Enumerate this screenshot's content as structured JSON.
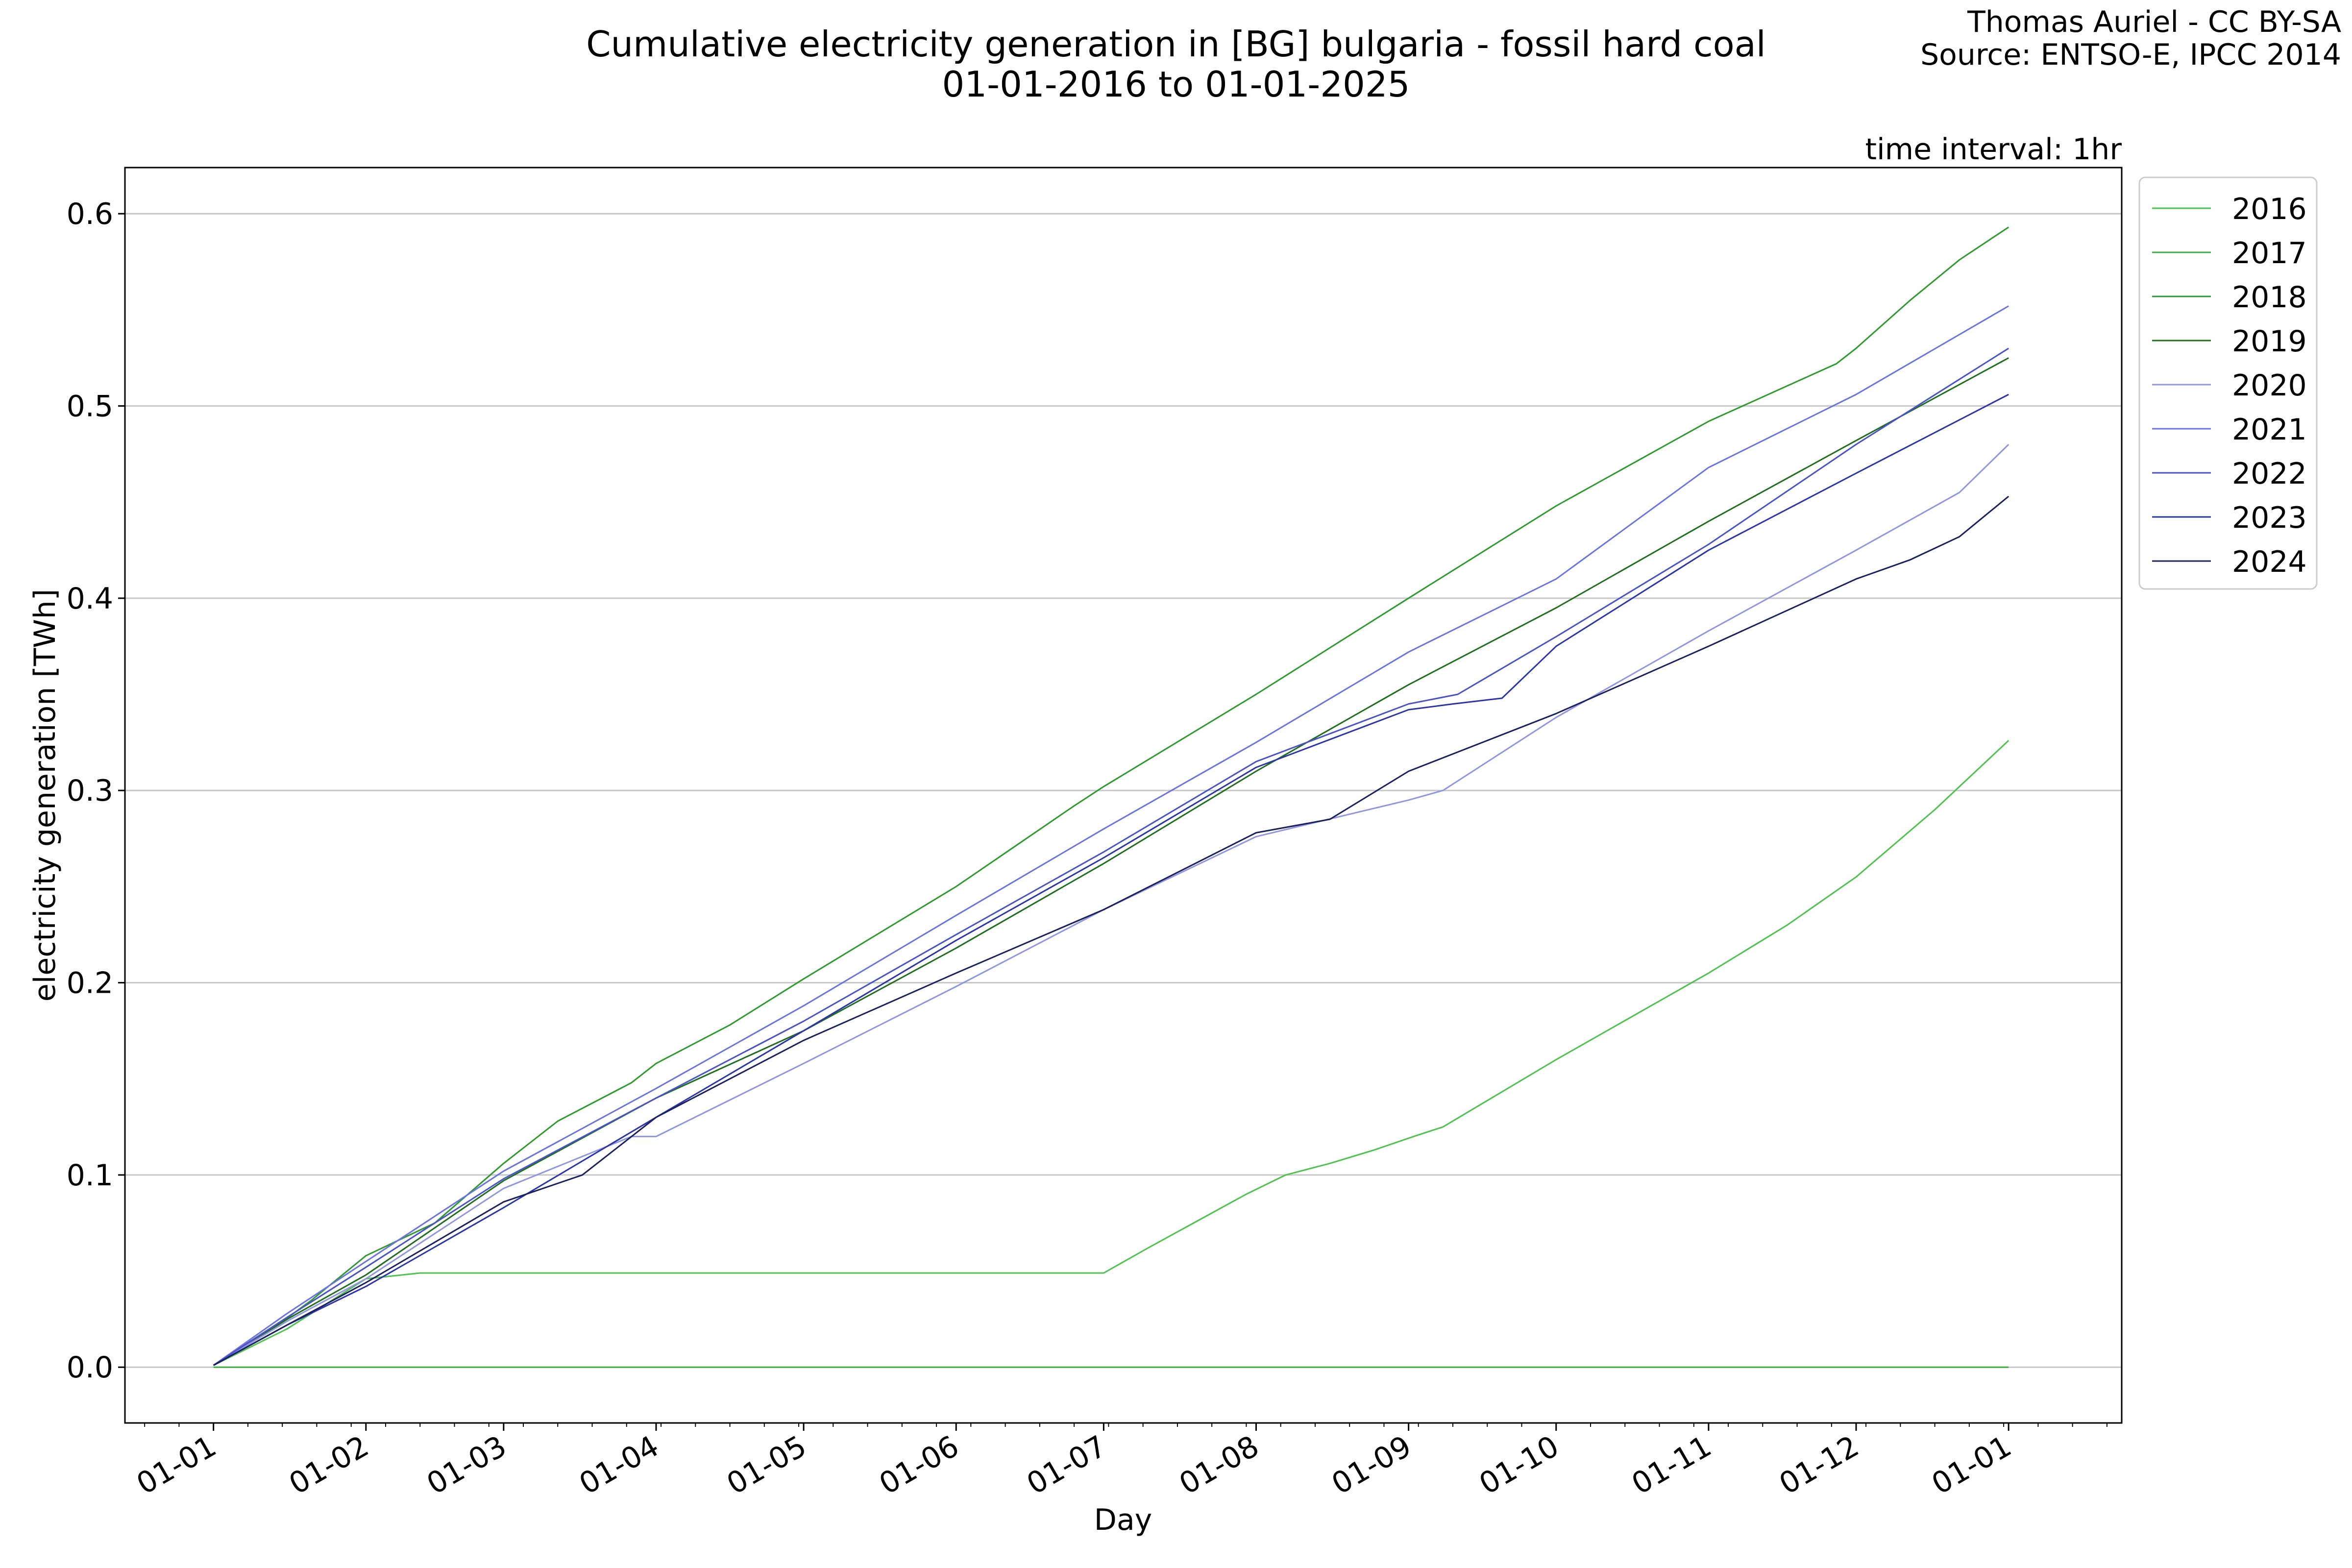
{
  "header": {
    "title_line1": "Cumulative electricity generation in [BG] bulgaria - fossil hard coal",
    "title_line2": "01-01-2016 to 01-01-2025",
    "credit_line1": "Thomas Auriel - CC BY-SA",
    "credit_line2": "Source: ENTSO-E, IPCC 2014",
    "interval_note": "time interval: 1hr"
  },
  "chart_data": {
    "type": "line",
    "title": "Cumulative electricity generation in [BG] bulgaria - fossil hard coal",
    "subtitle": "01-01-2016 to 01-01-2025",
    "xlabel": "Day",
    "ylabel": "electricity generation [TWh]",
    "x_tick_labels": [
      "01-01",
      "01-02",
      "01-03",
      "01-04",
      "01-05",
      "01-06",
      "01-07",
      "01-08",
      "01-09",
      "01-10",
      "01-11",
      "01-12",
      "01-01"
    ],
    "x_tick_days": [
      0,
      31,
      59,
      90,
      120,
      151,
      181,
      212,
      243,
      273,
      304,
      334,
      365
    ],
    "xlim": [
      -18,
      388
    ],
    "ylim": [
      -0.029,
      0.624
    ],
    "y_ticks": [
      0.0,
      0.1,
      0.2,
      0.3,
      0.4,
      0.5,
      0.6
    ],
    "y_tick_labels": [
      "0.0",
      "0.1",
      "0.2",
      "0.3",
      "0.4",
      "0.5",
      "0.6"
    ],
    "grid": "horizontal",
    "legend_position": "outside-right-top",
    "series": [
      {
        "name": "2016",
        "color": "#4ec24e",
        "points": [
          [
            0,
            0.001
          ],
          [
            15,
            0.02
          ],
          [
            31,
            0.046
          ],
          [
            42,
            0.049
          ],
          [
            60,
            0.049
          ],
          [
            120,
            0.049
          ],
          [
            181,
            0.049
          ],
          [
            190,
            0.062
          ],
          [
            200,
            0.076
          ],
          [
            210,
            0.09
          ],
          [
            218,
            0.1
          ],
          [
            227,
            0.106
          ],
          [
            236,
            0.113
          ],
          [
            244,
            0.12
          ],
          [
            250,
            0.125
          ],
          [
            273,
            0.16
          ],
          [
            304,
            0.205
          ],
          [
            320,
            0.23
          ],
          [
            334,
            0.255
          ],
          [
            350,
            0.29
          ],
          [
            365,
            0.326
          ]
        ]
      },
      {
        "name": "2017",
        "color": "#3fb13f",
        "points": [
          [
            0,
            0.0
          ],
          [
            365,
            0.0
          ]
        ]
      },
      {
        "name": "2018",
        "color": "#2e9a2e",
        "points": [
          [
            0,
            0.001
          ],
          [
            12,
            0.02
          ],
          [
            20,
            0.035
          ],
          [
            31,
            0.058
          ],
          [
            45,
            0.075
          ],
          [
            59,
            0.106
          ],
          [
            70,
            0.128
          ],
          [
            85,
            0.148
          ],
          [
            90,
            0.158
          ],
          [
            105,
            0.178
          ],
          [
            120,
            0.202
          ],
          [
            151,
            0.25
          ],
          [
            175,
            0.292
          ],
          [
            181,
            0.302
          ],
          [
            212,
            0.35
          ],
          [
            243,
            0.4
          ],
          [
            273,
            0.448
          ],
          [
            304,
            0.492
          ],
          [
            330,
            0.522
          ],
          [
            334,
            0.53
          ],
          [
            345,
            0.555
          ],
          [
            355,
            0.576
          ],
          [
            365,
            0.593
          ]
        ]
      },
      {
        "name": "2019",
        "color": "#1e6e1e",
        "points": [
          [
            0,
            0.001
          ],
          [
            15,
            0.025
          ],
          [
            31,
            0.048
          ],
          [
            59,
            0.097
          ],
          [
            90,
            0.14
          ],
          [
            120,
            0.175
          ],
          [
            151,
            0.218
          ],
          [
            181,
            0.262
          ],
          [
            212,
            0.31
          ],
          [
            243,
            0.355
          ],
          [
            273,
            0.395
          ],
          [
            304,
            0.44
          ],
          [
            334,
            0.482
          ],
          [
            365,
            0.525
          ]
        ]
      },
      {
        "name": "2020",
        "color": "#8f95de",
        "points": [
          [
            0,
            0.001
          ],
          [
            15,
            0.024
          ],
          [
            31,
            0.046
          ],
          [
            59,
            0.093
          ],
          [
            85,
            0.12
          ],
          [
            90,
            0.12
          ],
          [
            120,
            0.158
          ],
          [
            151,
            0.198
          ],
          [
            181,
            0.238
          ],
          [
            212,
            0.276
          ],
          [
            243,
            0.295
          ],
          [
            250,
            0.3
          ],
          [
            273,
            0.338
          ],
          [
            304,
            0.383
          ],
          [
            334,
            0.425
          ],
          [
            355,
            0.455
          ],
          [
            365,
            0.48
          ]
        ]
      },
      {
        "name": "2021",
        "color": "#6b73e0",
        "points": [
          [
            0,
            0.001
          ],
          [
            15,
            0.028
          ],
          [
            31,
            0.055
          ],
          [
            59,
            0.102
          ],
          [
            90,
            0.145
          ],
          [
            120,
            0.188
          ],
          [
            151,
            0.235
          ],
          [
            181,
            0.28
          ],
          [
            212,
            0.325
          ],
          [
            243,
            0.372
          ],
          [
            273,
            0.41
          ],
          [
            304,
            0.468
          ],
          [
            334,
            0.506
          ],
          [
            365,
            0.552
          ]
        ]
      },
      {
        "name": "2022",
        "color": "#4a52c8",
        "points": [
          [
            0,
            0.001
          ],
          [
            15,
            0.026
          ],
          [
            31,
            0.052
          ],
          [
            59,
            0.098
          ],
          [
            90,
            0.14
          ],
          [
            120,
            0.18
          ],
          [
            151,
            0.225
          ],
          [
            181,
            0.268
          ],
          [
            212,
            0.315
          ],
          [
            243,
            0.345
          ],
          [
            253,
            0.35
          ],
          [
            273,
            0.38
          ],
          [
            304,
            0.428
          ],
          [
            334,
            0.48
          ],
          [
            365,
            0.53
          ]
        ]
      },
      {
        "name": "2023",
        "color": "#2b34a8",
        "points": [
          [
            0,
            0.001
          ],
          [
            15,
            0.022
          ],
          [
            31,
            0.042
          ],
          [
            59,
            0.083
          ],
          [
            90,
            0.13
          ],
          [
            120,
            0.175
          ],
          [
            151,
            0.222
          ],
          [
            181,
            0.265
          ],
          [
            212,
            0.312
          ],
          [
            243,
            0.342
          ],
          [
            252,
            0.345
          ],
          [
            262,
            0.348
          ],
          [
            273,
            0.375
          ],
          [
            304,
            0.425
          ],
          [
            334,
            0.465
          ],
          [
            365,
            0.506
          ]
        ]
      },
      {
        "name": "2024",
        "color": "#1a1f5e",
        "points": [
          [
            0,
            0.001
          ],
          [
            15,
            0.022
          ],
          [
            31,
            0.044
          ],
          [
            59,
            0.086
          ],
          [
            75,
            0.1
          ],
          [
            90,
            0.13
          ],
          [
            120,
            0.17
          ],
          [
            151,
            0.205
          ],
          [
            181,
            0.238
          ],
          [
            212,
            0.278
          ],
          [
            227,
            0.285
          ],
          [
            243,
            0.31
          ],
          [
            273,
            0.34
          ],
          [
            304,
            0.375
          ],
          [
            334,
            0.41
          ],
          [
            345,
            0.42
          ],
          [
            355,
            0.432
          ],
          [
            365,
            0.453
          ]
        ]
      }
    ]
  }
}
